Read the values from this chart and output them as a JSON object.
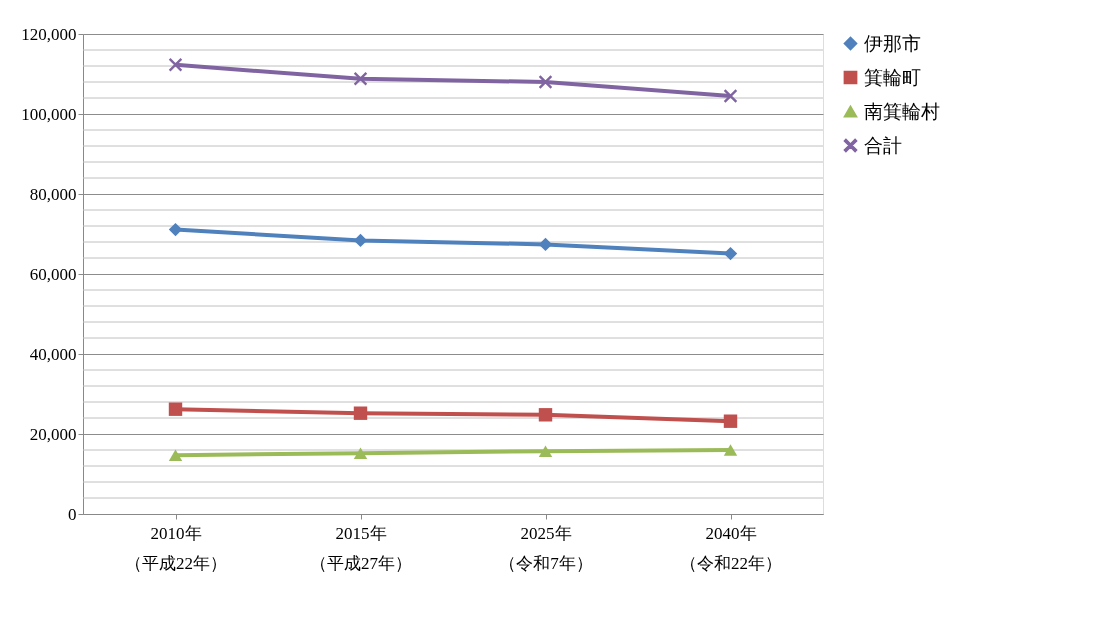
{
  "chart_data": {
    "type": "line",
    "categories": [
      "2010年（平成22年）",
      "2015年（平成27年）",
      "2025年（令和7年）",
      "2040年（令和22年）"
    ],
    "series": [
      {
        "name": "伊那市",
        "color": "#4f81bd",
        "marker": "diamond",
        "values": [
          71100,
          68400,
          67400,
          65100
        ]
      },
      {
        "name": "箕輪町",
        "color": "#c0504d",
        "marker": "square",
        "values": [
          26200,
          25200,
          24800,
          23200
        ]
      },
      {
        "name": "南箕輪村",
        "color": "#9bbb59",
        "marker": "triangle",
        "values": [
          14700,
          15200,
          15700,
          16000
        ]
      },
      {
        "name": "合計",
        "color": "#8064a2",
        "marker": "cross",
        "values": [
          112300,
          108800,
          108000,
          104500
        ]
      }
    ],
    "ylim": [
      0,
      120000
    ],
    "yticks": [
      0,
      {
        "value": 4000,
        "label": null
      },
      {
        "value": 8000,
        "label": null
      },
      {
        "value": 12000,
        "label": null
      },
      {
        "value": 16000,
        "label": null
      },
      {
        "value": 20000,
        "label": "20,000"
      },
      {
        "value": 24000,
        "label": null
      },
      {
        "value": 28000,
        "label": null
      },
      {
        "value": 32000,
        "label": null
      },
      {
        "value": 36000,
        "label": null
      },
      {
        "value": 40000,
        "label": "40,000"
      },
      {
        "value": 44000,
        "label": null
      },
      {
        "value": 48000,
        "label": null
      },
      {
        "value": 52000,
        "label": null
      },
      {
        "value": 56000,
        "label": null
      },
      {
        "value": 60000,
        "label": "60,000"
      },
      {
        "value": 64000,
        "label": null
      },
      {
        "value": 68000,
        "label": null
      },
      {
        "value": 72000,
        "label": null
      },
      {
        "value": 76000,
        "label": null
      },
      {
        "value": 80000,
        "label": "80,000"
      },
      {
        "value": 84000,
        "label": null
      },
      {
        "value": 88000,
        "label": null
      },
      {
        "value": 92000,
        "label": null
      },
      {
        "value": 96000,
        "label": null
      },
      {
        "value": 100000,
        "label": "100,000"
      },
      {
        "value": 104000,
        "label": null
      },
      {
        "value": 108000,
        "label": null
      },
      {
        "value": 112000,
        "label": null
      },
      {
        "value": 116000,
        "label": null
      },
      {
        "value": 120000,
        "label": "120,000"
      }
    ],
    "grid": true,
    "legend": "right",
    "line_style": "solid"
  }
}
